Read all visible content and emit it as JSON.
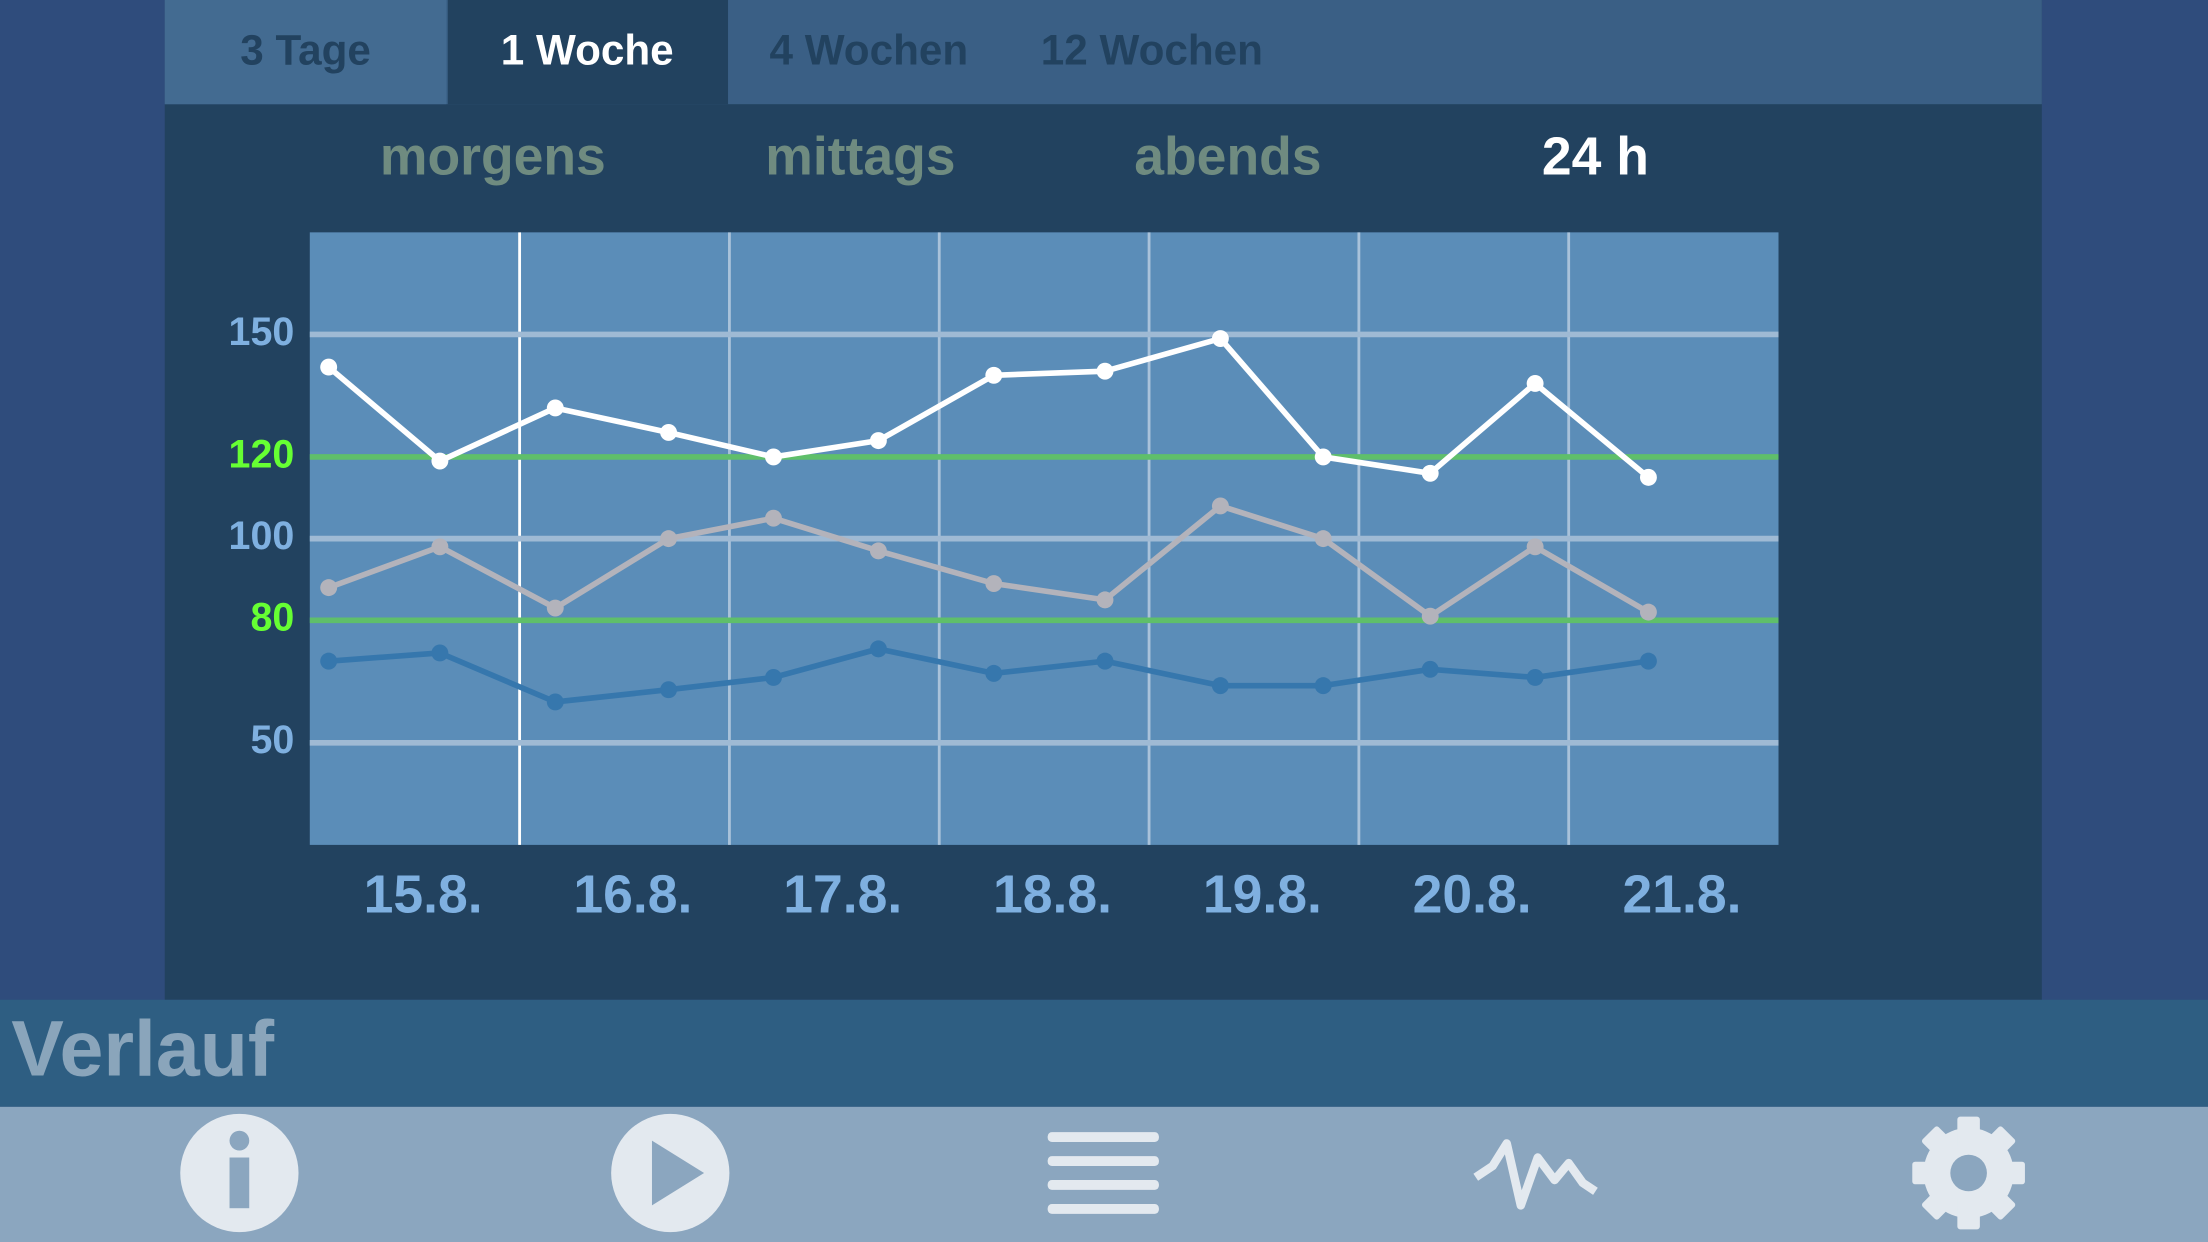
{
  "tabs": [
    "3 Tage",
    "1 Woche",
    "4 Wochen",
    "12 Wochen"
  ],
  "selected_tab": 1,
  "subtabs": [
    "morgens",
    "mittags",
    "abends",
    "24 h"
  ],
  "selected_subtab": 3,
  "header": {
    "title": "Verlauf"
  },
  "chart_data": {
    "type": "line",
    "x": [
      0.09,
      0.62,
      1.17,
      1.71,
      2.21,
      2.71,
      3.26,
      3.79,
      4.34,
      4.83,
      5.34,
      5.84,
      6.38
    ],
    "xlim": [
      0,
      7
    ],
    "xticks": [
      {
        "value": 0.54,
        "label": "15.8."
      },
      {
        "value": 1.54,
        "label": "16.8."
      },
      {
        "value": 2.54,
        "label": "17.8."
      },
      {
        "value": 3.54,
        "label": "18.8."
      },
      {
        "value": 4.54,
        "label": "19.8."
      },
      {
        "value": 5.54,
        "label": "20.8."
      },
      {
        "value": 6.54,
        "label": "21.8."
      }
    ],
    "xgrid": [
      1,
      2,
      3,
      4,
      5,
      6
    ],
    "ylim": [
      25,
      175
    ],
    "yticks": [
      50,
      80,
      100,
      120,
      150
    ],
    "ytick_colors": [
      "#7fb0e0",
      "#66ff33",
      "#7fb0e0",
      "#66ff33",
      "#7fb0e0"
    ],
    "grid_colors": [
      "#9fbad4",
      "#5fbf6a",
      "#9fbad4",
      "#5fbf6a",
      "#9fbad4"
    ],
    "series": [
      {
        "color": "#ffffff",
        "values": [
          142,
          119,
          132,
          126,
          120,
          124,
          140,
          141,
          149,
          120,
          116,
          138,
          115
        ]
      },
      {
        "color": "#b3b3bb",
        "values": [
          88,
          98,
          83,
          100,
          105,
          97,
          89,
          85,
          108,
          100,
          81,
          98,
          82
        ]
      },
      {
        "color": "#3677ad",
        "values": [
          70,
          72,
          60,
          63,
          66,
          73,
          67,
          70,
          64,
          64,
          68,
          66,
          70
        ]
      }
    ]
  }
}
